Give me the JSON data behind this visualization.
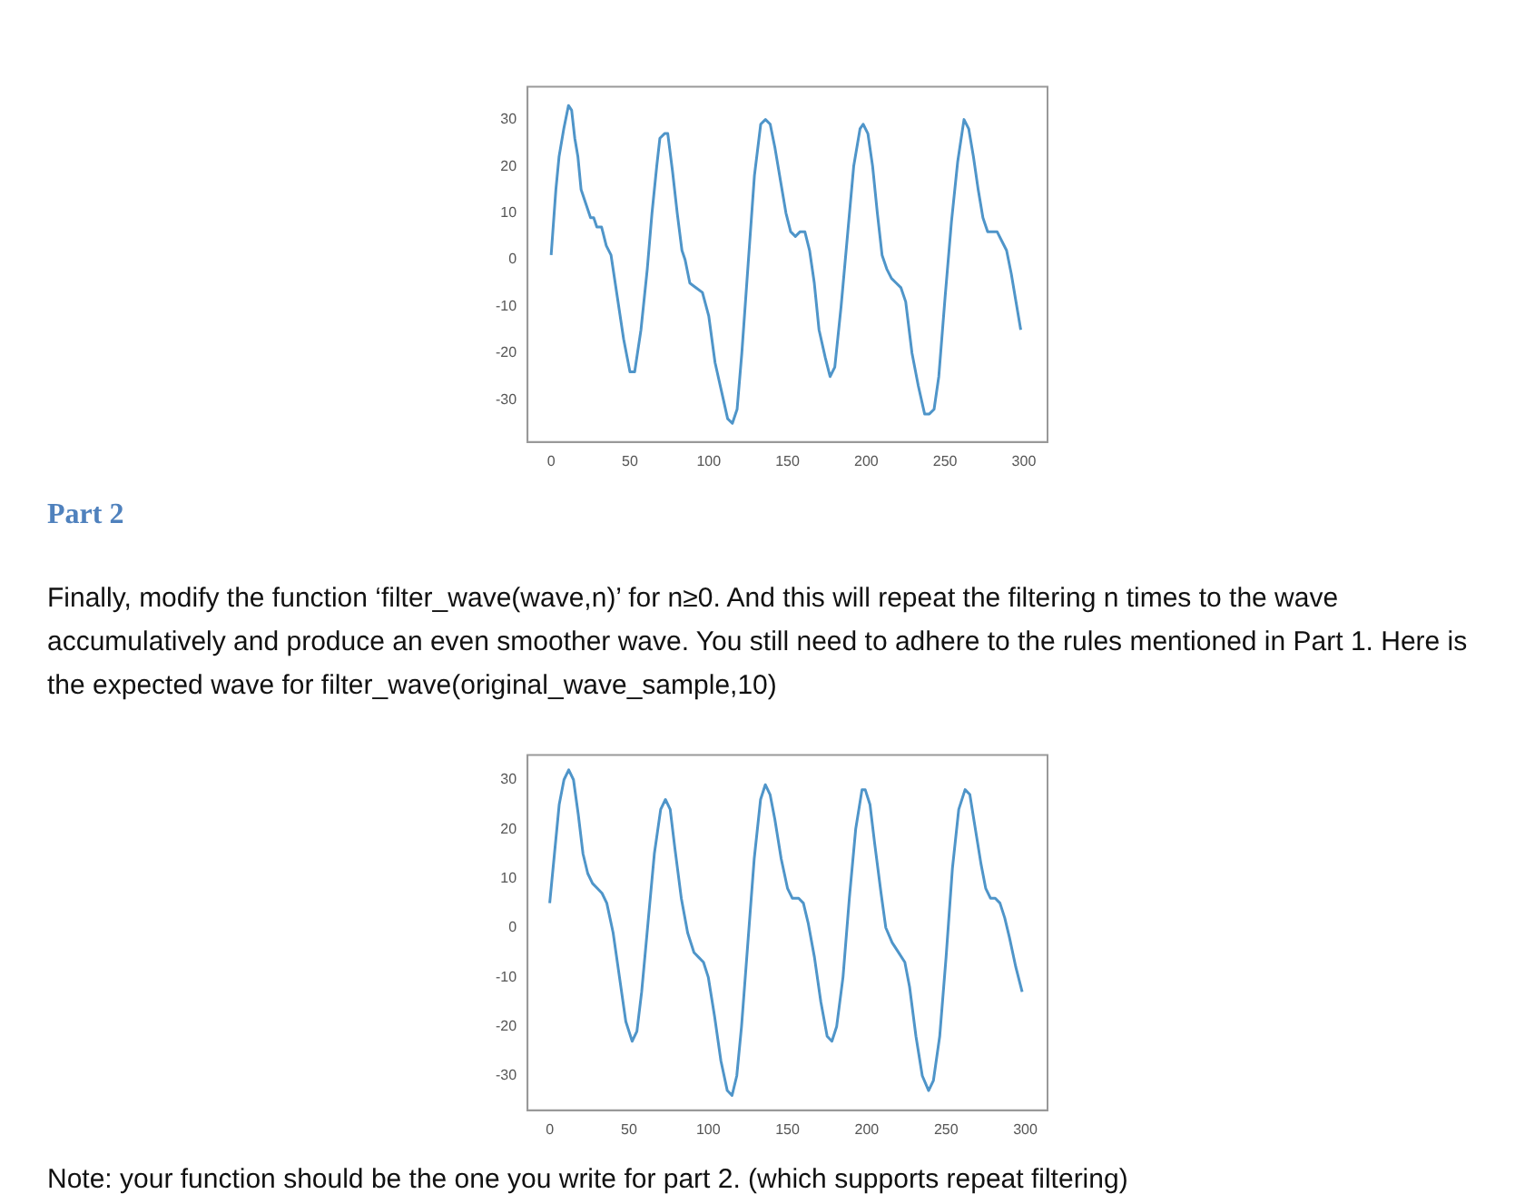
{
  "chart_data": [
    {
      "type": "line",
      "x": [
        0,
        3,
        5,
        8,
        11,
        13,
        15,
        17,
        19,
        22,
        25,
        27,
        29,
        32,
        35,
        38,
        42,
        46,
        50,
        53,
        57,
        61,
        64,
        67,
        69,
        72,
        74,
        77,
        80,
        83,
        85,
        88,
        92,
        96,
        100,
        104,
        108,
        112,
        115,
        118,
        121,
        125,
        129,
        133,
        136,
        139,
        142,
        146,
        149,
        152,
        155,
        158,
        161,
        164,
        167,
        170,
        174,
        177,
        180,
        184,
        188,
        192,
        196,
        198,
        201,
        204,
        207,
        210,
        213,
        216,
        219,
        222,
        225,
        229,
        233,
        237,
        240,
        243,
        246,
        250,
        254,
        258,
        262,
        265,
        268,
        271,
        274,
        277,
        280,
        283,
        286,
        289,
        292,
        295,
        298
      ],
      "series": [
        {
          "color": "#4f95c9",
          "values": [
            1,
            15,
            22,
            28,
            33,
            32,
            26,
            22,
            15,
            12,
            9,
            9,
            7,
            7,
            3,
            1,
            -8,
            -17,
            -24,
            -24,
            -15,
            -2,
            10,
            20,
            26,
            27,
            27,
            19,
            10,
            2,
            0,
            -5,
            -6,
            -7,
            -12,
            -22,
            -28,
            -34,
            -35,
            -32,
            -20,
            -1,
            18,
            29,
            30,
            29,
            24,
            16,
            10,
            6,
            5,
            6,
            6,
            2,
            -5,
            -15,
            -21,
            -25,
            -23,
            -10,
            5,
            20,
            28,
            29,
            27,
            20,
            10,
            1,
            -2,
            -4,
            -5,
            -6,
            -9,
            -20,
            -27,
            -33,
            -33,
            -32,
            -25,
            -8,
            8,
            21,
            30,
            28,
            22,
            15,
            9,
            6,
            6,
            6,
            4,
            2,
            -3,
            -9,
            -15
          ]
        }
      ],
      "annotations": [
        "Part 2",
        "Finally, modify the function ‘filter_wave(wave,n)’ for n≥0. And this will repeat the filtering n times to the wave accumulatively and produce an even smoother wave. You still need to adhere to the rules mentioned in Part 1. Here is the expected wave for filter_wave(original_wave_sample,10)"
      ],
      "xlim": [
        -15,
        315
      ],
      "ylim": [
        -39,
        37
      ],
      "xticks": [
        0,
        50,
        100,
        150,
        200,
        250,
        300
      ],
      "yticks": [
        -30,
        -20,
        -10,
        0,
        10,
        20,
        30
      ],
      "grid": false,
      "legend": false,
      "marker": "none"
    },
    {
      "type": "line",
      "annotations": [
        "Note: your function should be the one you write for part 2. (which supports repeat filtering)"
      ],
      "x": [
        0,
        3,
        6,
        9,
        12,
        15,
        18,
        21,
        24,
        27,
        30,
        33,
        36,
        40,
        44,
        48,
        52,
        55,
        58,
        62,
        66,
        70,
        73,
        76,
        79,
        83,
        87,
        91,
        94,
        97,
        100,
        104,
        108,
        112,
        115,
        118,
        121,
        125,
        129,
        133,
        136,
        139,
        142,
        146,
        150,
        153,
        157,
        160,
        163,
        167,
        171,
        175,
        178,
        181,
        185,
        189,
        193,
        197,
        199,
        202,
        205,
        209,
        212,
        216,
        220,
        224,
        227,
        231,
        235,
        239,
        242,
        246,
        250,
        254,
        258,
        262,
        265,
        268,
        272,
        275,
        278,
        281,
        284,
        287,
        290,
        294,
        298
      ],
      "series": [
        {
          "color": "#4f95c9",
          "values": [
            5,
            15,
            25,
            30,
            32,
            30,
            23,
            15,
            11,
            9,
            8,
            7,
            5,
            -1,
            -10,
            -19,
            -23,
            -21,
            -13,
            1,
            15,
            24,
            26,
            24,
            16,
            6,
            -1,
            -5,
            -6,
            -7,
            -10,
            -18,
            -27,
            -33,
            -34,
            -30,
            -20,
            -3,
            14,
            26,
            29,
            27,
            22,
            14,
            8,
            6,
            6,
            5,
            1,
            -6,
            -15,
            -22,
            -23,
            -20,
            -10,
            6,
            20,
            28,
            28,
            25,
            17,
            7,
            0,
            -3,
            -5,
            -7,
            -12,
            -22,
            -30,
            -33,
            -31,
            -22,
            -6,
            12,
            24,
            28,
            27,
            21,
            13,
            8,
            6,
            6,
            5,
            2,
            -2,
            -8,
            -13
          ]
        }
      ],
      "xlim": [
        -14,
        314
      ],
      "ylim": [
        -37,
        35
      ],
      "xticks": [
        0,
        50,
        100,
        150,
        200,
        250,
        300
      ],
      "yticks": [
        -30,
        -20,
        -10,
        0,
        10,
        20,
        30
      ],
      "grid": false,
      "legend": false,
      "marker": "none"
    }
  ]
}
